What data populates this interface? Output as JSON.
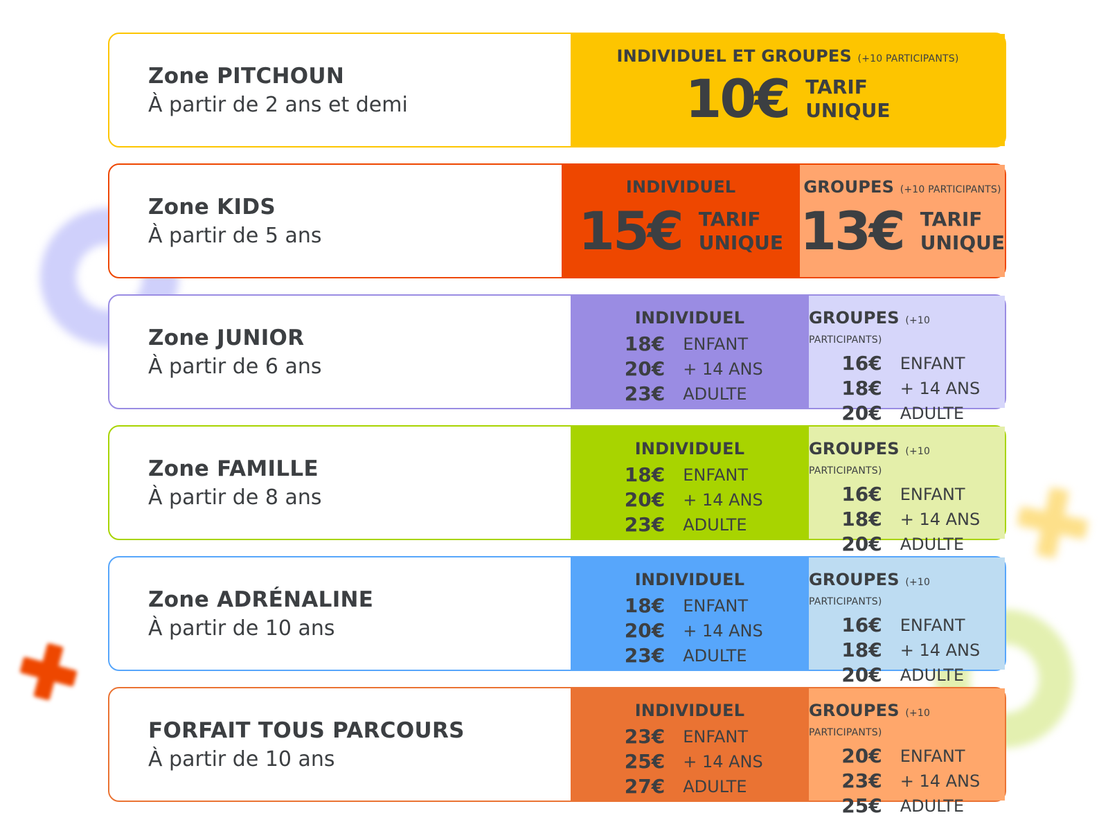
{
  "colors": {
    "text": "#3c3f42"
  },
  "rows": [
    {
      "title": "Zone PITCHOUN",
      "subtitle": "À partir de 2 ans et demi",
      "border": "#fdc500",
      "type": "single",
      "panels": [
        {
          "bg": "#fdc500",
          "title": "INDIVIDUEL ET GROUPES",
          "note": "(+10 PARTICIPANTS)",
          "price": "10€",
          "tag1": "TARIF",
          "tag2": "UNIQUE"
        }
      ]
    },
    {
      "title": "Zone KIDS",
      "subtitle": "À partir de 5 ans",
      "border": "#ee4700",
      "type": "unique",
      "panels": [
        {
          "bg": "#ee4700",
          "title": "INDIVIDUEL",
          "note": "",
          "price": "15€",
          "tag1": "TARIF",
          "tag2": "UNIQUE"
        },
        {
          "bg": "#ffa56e",
          "title": "GROUPES",
          "note": "(+10 PARTICIPANTS)",
          "price": "13€",
          "tag1": "TARIF",
          "tag2": "UNIQUE"
        }
      ]
    },
    {
      "title": "Zone JUNIOR",
      "subtitle": "À partir de 6 ans",
      "border": "#9a8ce3",
      "type": "list",
      "panels": [
        {
          "bg": "#9a8ce3",
          "title": "INDIVIDUEL",
          "note": "",
          "lines": [
            {
              "price": "18€",
              "label": "ENFANT"
            },
            {
              "price": "20€",
              "label": "+ 14 ANS"
            },
            {
              "price": "23€",
              "label": "ADULTE"
            }
          ]
        },
        {
          "bg": "#d6d6fa",
          "title": "GROUPES",
          "note": "(+10 PARTICIPANTS)",
          "lines": [
            {
              "price": "16€",
              "label": "ENFANT"
            },
            {
              "price": "18€",
              "label": "+ 14 ANS"
            },
            {
              "price": "20€",
              "label": "ADULTE"
            }
          ]
        }
      ]
    },
    {
      "title": "Zone FAMILLE",
      "subtitle": "À partir de 8 ans",
      "border": "#a8d400",
      "type": "list",
      "panels": [
        {
          "bg": "#a8d400",
          "title": "INDIVIDUEL",
          "note": "",
          "lines": [
            {
              "price": "18€",
              "label": "ENFANT"
            },
            {
              "price": "20€",
              "label": "+ 14 ANS"
            },
            {
              "price": "23€",
              "label": "ADULTE"
            }
          ]
        },
        {
          "bg": "#e4efaa",
          "title": "GROUPES",
          "note": "(+10 PARTICIPANTS)",
          "lines": [
            {
              "price": "16€",
              "label": "ENFANT"
            },
            {
              "price": "18€",
              "label": "+ 14 ANS"
            },
            {
              "price": "20€",
              "label": "ADULTE"
            }
          ]
        }
      ]
    },
    {
      "title": "Zone ADRÉNALINE",
      "subtitle": "À partir de 10 ans",
      "border": "#57a6fb",
      "type": "list",
      "panels": [
        {
          "bg": "#57a6fb",
          "title": "INDIVIDUEL",
          "note": "",
          "lines": [
            {
              "price": "18€",
              "label": "ENFANT"
            },
            {
              "price": "20€",
              "label": "+ 14 ANS"
            },
            {
              "price": "23€",
              "label": "ADULTE"
            }
          ]
        },
        {
          "bg": "#bddcf2",
          "title": "GROUPES",
          "note": "(+10 PARTICIPANTS)",
          "lines": [
            {
              "price": "16€",
              "label": "ENFANT"
            },
            {
              "price": "18€",
              "label": "+ 14 ANS"
            },
            {
              "price": "20€",
              "label": "ADULTE"
            }
          ]
        }
      ]
    },
    {
      "title": "FORFAIT TOUS PARCOURS",
      "subtitle": "À partir de 10 ans",
      "border": "#ea7333",
      "type": "list",
      "panels": [
        {
          "bg": "#ea7333",
          "title": "INDIVIDUEL",
          "note": "",
          "lines": [
            {
              "price": "23€",
              "label": "ENFANT"
            },
            {
              "price": "25€",
              "label": "+ 14 ANS"
            },
            {
              "price": "27€",
              "label": "ADULTE"
            }
          ]
        },
        {
          "bg": "#ffa76b",
          "title": "GROUPES",
          "note": "(+10 PARTICIPANTS)",
          "lines": [
            {
              "price": "20€",
              "label": "ENFANT"
            },
            {
              "price": "23€",
              "label": "+ 14 ANS"
            },
            {
              "price": "25€",
              "label": "ADULTE"
            }
          ]
        }
      ]
    }
  ]
}
